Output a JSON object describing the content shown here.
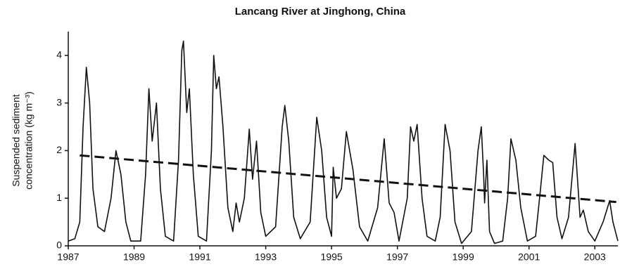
{
  "chart_data": {
    "type": "line",
    "title": "Lancang River at Jinghong, China",
    "y_label": [
      "Suspended sediment",
      "concentration (kg m⁻³)"
    ],
    "xlim": [
      1987,
      2003.7
    ],
    "xticks": [
      1987,
      1989,
      1991,
      1993,
      1995,
      1997,
      1999,
      2001,
      2003
    ],
    "ylim": [
      0,
      4.5
    ],
    "yticks": [
      0,
      1,
      2,
      3,
      4
    ],
    "series": [
      {
        "color": "#111111",
        "style": "solid",
        "x": [
          1987.0,
          1987.2,
          1987.35,
          1987.45,
          1987.55,
          1987.65,
          1987.75,
          1987.9,
          1988.1,
          1988.3,
          1988.45,
          1988.6,
          1988.75,
          1988.9,
          1989.2,
          1989.35,
          1989.45,
          1989.55,
          1989.68,
          1989.8,
          1989.95,
          1990.2,
          1990.35,
          1990.45,
          1990.5,
          1990.6,
          1990.68,
          1990.8,
          1990.95,
          1991.2,
          1991.35,
          1991.42,
          1991.5,
          1991.58,
          1991.7,
          1991.85,
          1992.0,
          1992.1,
          1992.2,
          1992.35,
          1992.5,
          1992.6,
          1992.72,
          1992.85,
          1993.0,
          1993.3,
          1993.5,
          1993.58,
          1993.7,
          1993.85,
          1994.05,
          1994.35,
          1994.55,
          1994.7,
          1994.85,
          1995.0,
          1995.05,
          1995.15,
          1995.3,
          1995.45,
          1995.65,
          1995.85,
          1996.1,
          1996.4,
          1996.6,
          1996.75,
          1996.9,
          1997.05,
          1997.3,
          1997.4,
          1997.5,
          1997.6,
          1997.75,
          1997.9,
          1998.15,
          1998.3,
          1998.45,
          1998.6,
          1998.75,
          1998.95,
          1999.25,
          1999.45,
          1999.55,
          1999.62,
          1999.65,
          1999.72,
          1999.8,
          1999.95,
          2000.2,
          2000.35,
          2000.45,
          2000.6,
          2000.75,
          2000.95,
          2001.2,
          2001.35,
          2001.45,
          2001.6,
          2001.72,
          2001.85,
          2002.0,
          2002.2,
          2002.4,
          2002.55,
          2002.65,
          2002.8,
          2003.0,
          2003.25,
          2003.45,
          2003.55,
          2003.7
        ],
        "values": [
          0.1,
          0.15,
          0.5,
          2.5,
          3.75,
          3.0,
          1.2,
          0.4,
          0.3,
          1.0,
          2.0,
          1.5,
          0.5,
          0.1,
          0.1,
          1.5,
          3.3,
          2.2,
          3.0,
          1.2,
          0.2,
          0.1,
          1.8,
          4.1,
          4.3,
          2.8,
          3.3,
          1.5,
          0.2,
          0.1,
          2.0,
          4.0,
          3.3,
          3.55,
          2.5,
          0.8,
          0.3,
          0.9,
          0.5,
          1.0,
          2.45,
          1.4,
          2.2,
          0.7,
          0.2,
          0.4,
          2.5,
          2.95,
          2.2,
          0.6,
          0.15,
          0.5,
          2.7,
          2.0,
          0.6,
          0.2,
          1.65,
          1.0,
          1.2,
          2.4,
          1.6,
          0.4,
          0.1,
          0.8,
          2.25,
          0.9,
          0.7,
          0.1,
          1.0,
          2.5,
          2.2,
          2.55,
          1.0,
          0.2,
          0.1,
          0.6,
          2.55,
          2.0,
          0.5,
          0.05,
          0.3,
          2.0,
          2.5,
          1.5,
          0.9,
          1.8,
          0.3,
          0.05,
          0.1,
          1.0,
          2.25,
          1.8,
          0.8,
          0.1,
          0.2,
          1.2,
          1.9,
          1.8,
          1.75,
          0.6,
          0.15,
          0.6,
          2.15,
          0.6,
          0.75,
          0.3,
          0.1,
          0.5,
          0.95,
          0.5,
          0.1
        ]
      },
      {
        "color": "#111111",
        "style": "dashed",
        "x": [
          1987.35,
          2003.65
        ],
        "values": [
          1.9,
          0.92
        ]
      }
    ]
  }
}
